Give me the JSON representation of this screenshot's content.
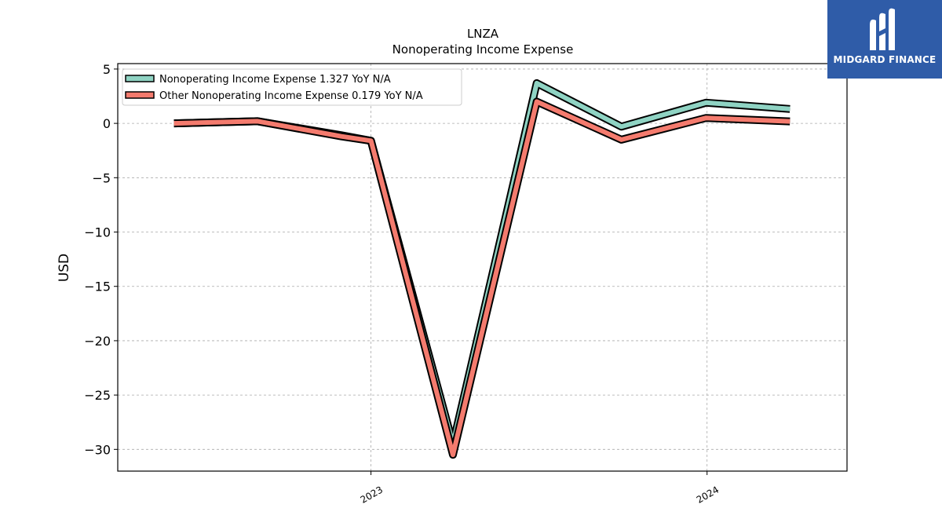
{
  "chart_data": {
    "type": "line",
    "title": "LNZA",
    "subtitle": "Nonoperating Income Expense",
    "ylabel": "USD",
    "xlabel": "",
    "ylim": [
      -32,
      5.5
    ],
    "yticks": [
      5,
      0,
      -5,
      -10,
      -15,
      -20,
      -25,
      -30
    ],
    "ytick_labels": [
      "5",
      "0",
      "−5",
      "−10",
      "−15",
      "−20",
      "−25",
      "−30"
    ],
    "xlim": [
      "2022-04-01",
      "2024-06-01"
    ],
    "xticks": [
      {
        "date": "2023-01-01",
        "label": "2023"
      },
      {
        "date": "2024-01-01",
        "label": "2024"
      }
    ],
    "x": [
      "2022-06-01",
      "2022-08-31",
      "2022-11-30",
      "2023-01-01",
      "2023-03-31",
      "2023-06-30",
      "2023-09-30",
      "2023-12-31",
      "2024-03-31"
    ],
    "series": [
      {
        "name": "Nonoperating Income Expense  1.327 YoY N/A",
        "color": "#8fd3c3",
        "values": [
          0.0,
          0.2,
          -1.1,
          -1.6,
          -29.5,
          3.7,
          -0.3,
          1.9,
          1.327
        ]
      },
      {
        "name": "Other Nonoperating Income Expense  0.179 YoY N/A",
        "color": "#f47b6e",
        "values": [
          0.0,
          0.2,
          -1.2,
          -1.6,
          -30.5,
          2.0,
          -1.5,
          0.5,
          0.179
        ]
      }
    ],
    "grid": true,
    "legend": "top-left"
  },
  "logo": {
    "text": "MIDGARD FINANCE"
  }
}
